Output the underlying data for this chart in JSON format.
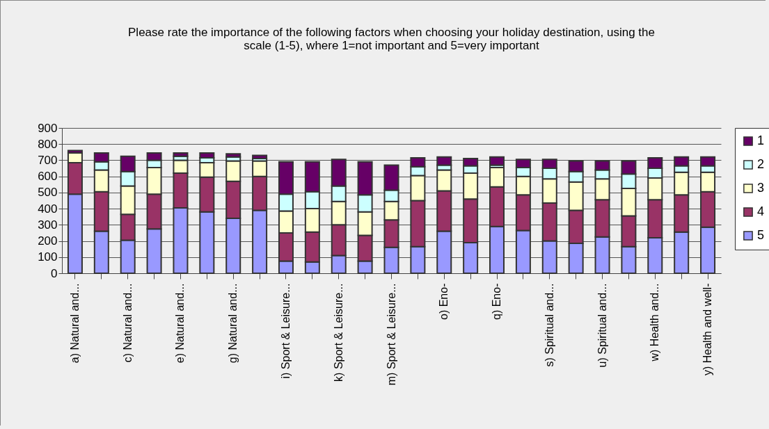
{
  "chart_data": {
    "type": "bar",
    "stacked": true,
    "title": "Please rate the importance of the following factors when choosing your holiday destination, using the scale (1-5), where 1=not important and 5=very important",
    "categories": [
      "a) Natural and...",
      null,
      "c) Natural and...",
      null,
      "e) Natural and...",
      null,
      "g) Natural and...",
      null,
      "i) Sport & Leisure...",
      null,
      "k) Sport & Leisure...",
      null,
      "m) Sport & Leisure...",
      null,
      "o) Eno-",
      null,
      "q) Eno-",
      null,
      "s) Spiritual and...",
      null,
      "u) Spiritual and...",
      null,
      "w) Health and...",
      null,
      "y) Health and well-"
    ],
    "series": [
      {
        "name": "5",
        "color": "#9999ff",
        "values": [
          490,
          260,
          205,
          275,
          405,
          380,
          340,
          390,
          75,
          70,
          110,
          75,
          160,
          165,
          260,
          190,
          290,
          265,
          200,
          185,
          225,
          165,
          220,
          255,
          285
        ]
      },
      {
        "name": "4",
        "color": "#993366",
        "values": [
          195,
          245,
          160,
          215,
          215,
          215,
          230,
          210,
          175,
          185,
          190,
          160,
          170,
          285,
          250,
          270,
          245,
          220,
          235,
          205,
          230,
          190,
          235,
          230,
          220
        ]
      },
      {
        "name": "3",
        "color": "#ffffcc",
        "values": [
          60,
          135,
          175,
          165,
          80,
          90,
          125,
          95,
          135,
          145,
          145,
          145,
          115,
          155,
          130,
          160,
          120,
          115,
          150,
          175,
          130,
          170,
          135,
          140,
          120
        ]
      },
      {
        "name": "2",
        "color": "#ccffff",
        "values": [
          null,
          50,
          90,
          45,
          25,
          30,
          25,
          15,
          105,
          105,
          95,
          105,
          70,
          55,
          30,
          45,
          15,
          55,
          65,
          65,
          55,
          90,
          60,
          40,
          40
        ]
      },
      {
        "name": "1",
        "color": "#660066",
        "values": [
          15,
          55,
          95,
          45,
          20,
          30,
          20,
          20,
          200,
          185,
          165,
          205,
          155,
          55,
          50,
          45,
          50,
          50,
          55,
          65,
          55,
          80,
          65,
          55,
          55
        ]
      }
    ],
    "ylim": [
      0,
      900
    ],
    "yticks": [
      0,
      100,
      200,
      300,
      400,
      500,
      600,
      700,
      800,
      900
    ],
    "grid": "y",
    "legend": "right"
  }
}
